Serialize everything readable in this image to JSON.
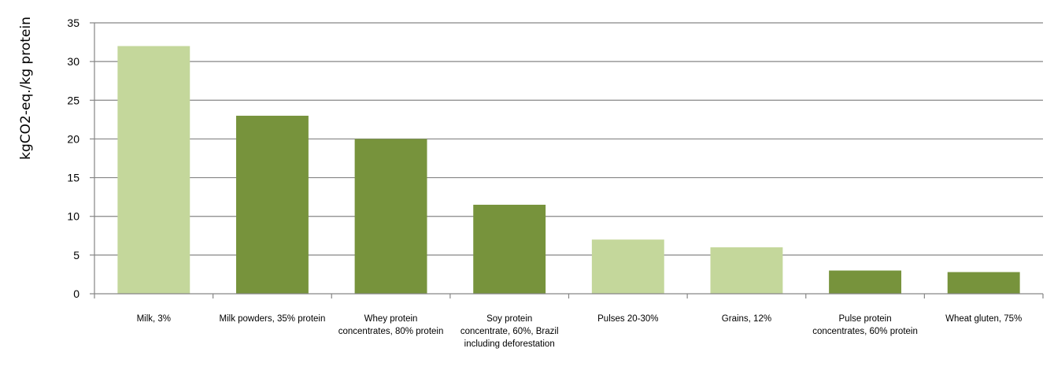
{
  "chart_data": {
    "type": "bar",
    "ylabel": "kgCO2-eq./kg protein",
    "xlabel": "",
    "ylim": [
      0,
      35
    ],
    "yticks": [
      0,
      5,
      10,
      15,
      20,
      25,
      30,
      35
    ],
    "grid": true,
    "categories": [
      [
        "Milk, 3%"
      ],
      [
        "Milk powders, 35% protein"
      ],
      [
        "Whey protein",
        "concentrates, 80% protein"
      ],
      [
        "Soy protein",
        "concentrate, 60%, Brazil",
        "including deforestation"
      ],
      [
        "Pulses 20-30%"
      ],
      [
        "Grains, 12%"
      ],
      [
        "Pulse protein",
        "concentrates, 60% protein"
      ],
      [
        "Wheat gluten, 75%"
      ]
    ],
    "values": [
      32,
      23,
      20,
      11.5,
      7,
      6,
      3,
      2.8
    ],
    "bar_colors": [
      "#c4d79b",
      "#77933c",
      "#77933c",
      "#77933c",
      "#c4d79b",
      "#c4d79b",
      "#77933c",
      "#77933c"
    ]
  }
}
